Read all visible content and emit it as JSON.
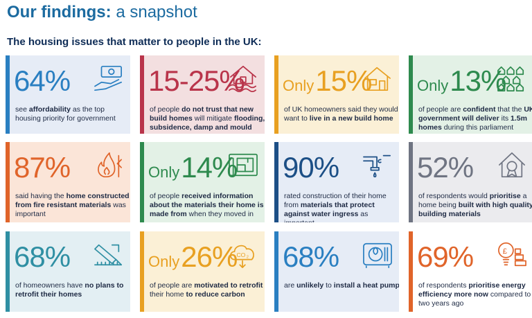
{
  "header": {
    "title_bold": "Our findings:",
    "title_light": " a snapshot",
    "subtitle": "The housing issues that matter to people in the UK:"
  },
  "cards": [
    {
      "prefix": "",
      "value": "64%",
      "parts": [
        {
          "t": "see "
        },
        {
          "t": "affordability",
          "b": true
        },
        {
          "t": " as the top housing priority for government"
        }
      ],
      "icon": "money-hand-icon",
      "bg": "#e6ecf6",
      "accent": "#2a7fc1"
    },
    {
      "prefix": "",
      "value": "15-25%",
      "parts": [
        {
          "t": "of people "
        },
        {
          "t": "do not trust that new build homes",
          "b": true
        },
        {
          "t": " will mitigate "
        },
        {
          "t": "flooding, subsidence, damp and mould",
          "b": true
        }
      ],
      "icon": "flooded-house-icon",
      "bg": "#f3dfe0",
      "accent": "#b9344a"
    },
    {
      "prefix": "Only",
      "value": "15%",
      "parts": [
        {
          "t": "of UK homeowners said they would want to "
        },
        {
          "t": "live in a new build home",
          "b": true
        }
      ],
      "icon": "house-icon",
      "bg": "#fbf0d6",
      "accent": "#e8a021"
    },
    {
      "prefix": "Only",
      "value": "13%",
      "parts": [
        {
          "t": "of people are "
        },
        {
          "t": "confident",
          "b": true
        },
        {
          "t": " that the "
        },
        {
          "t": "UK government will deliver",
          "b": true
        },
        {
          "t": " its "
        },
        {
          "t": "1.5m homes",
          "b": true
        },
        {
          "t": " during this parliament"
        }
      ],
      "icon": "houses-grid-icon",
      "bg": "#e3f1e6",
      "accent": "#2e8a4e"
    },
    {
      "prefix": "",
      "value": "87%",
      "parts": [
        {
          "t": "said having the "
        },
        {
          "t": "home constructed from fire resistant materials",
          "b": true
        },
        {
          "t": " was important"
        }
      ],
      "icon": "fire-icon",
      "bg": "#fbe5d8",
      "accent": "#e0642a"
    },
    {
      "prefix": "Only",
      "value": "14%",
      "parts": [
        {
          "t": "of people "
        },
        {
          "t": "received information about the materials their home is made from",
          "b": true
        },
        {
          "t": " when they moved in"
        }
      ],
      "icon": "blueprint-icon",
      "bg": "#e3f1e6",
      "accent": "#2e8a4e"
    },
    {
      "prefix": "",
      "value": "90%",
      "parts": [
        {
          "t": "rated construction of their home from "
        },
        {
          "t": "materials that protect against water ingress",
          "b": true
        },
        {
          "t": " as important"
        }
      ],
      "icon": "leaking-pipe-icon",
      "bg": "#e6ecf6",
      "accent": "#1c4f86"
    },
    {
      "prefix": "",
      "value": "52%",
      "parts": [
        {
          "t": "of respondents would "
        },
        {
          "t": "prioritise",
          "b": true
        },
        {
          "t": " a home being "
        },
        {
          "t": "built with high quality building materials",
          "b": true
        }
      ],
      "icon": "award-house-icon",
      "bg": "#ebebee",
      "accent": "#6f7482"
    },
    {
      "prefix": "",
      "value": "68%",
      "parts": [
        {
          "t": "of homeowners have "
        },
        {
          "t": "no plans to retrofit their homes",
          "b": true
        }
      ],
      "icon": "saw-icon",
      "bg": "#e3eff3",
      "accent": "#2f8fa3"
    },
    {
      "prefix": "Only",
      "value": "26%",
      "parts": [
        {
          "t": "of people are "
        },
        {
          "t": "motivated to retrofit",
          "b": true
        },
        {
          "t": " their home "
        },
        {
          "t": "to reduce carbon",
          "b": true
        }
      ],
      "icon": "co2-cloud-icon",
      "bg": "#fbf0d6",
      "accent": "#e8a021"
    },
    {
      "prefix": "",
      "value": "68%",
      "parts": [
        {
          "t": "are "
        },
        {
          "t": "unlikely",
          "b": true
        },
        {
          "t": " to "
        },
        {
          "t": "install a heat pump",
          "b": true
        }
      ],
      "icon": "heat-pump-icon",
      "bg": "#e6ecf6",
      "accent": "#2a7fc1"
    },
    {
      "prefix": "",
      "value": "69%",
      "parts": [
        {
          "t": "of respondents "
        },
        {
          "t": "prioritise energy efficiency more now",
          "b": true
        },
        {
          "t": " compared to two years ago"
        }
      ],
      "icon": "energy-bulb-icon",
      "bg": "#ffffff",
      "accent": "#e0642a"
    }
  ]
}
